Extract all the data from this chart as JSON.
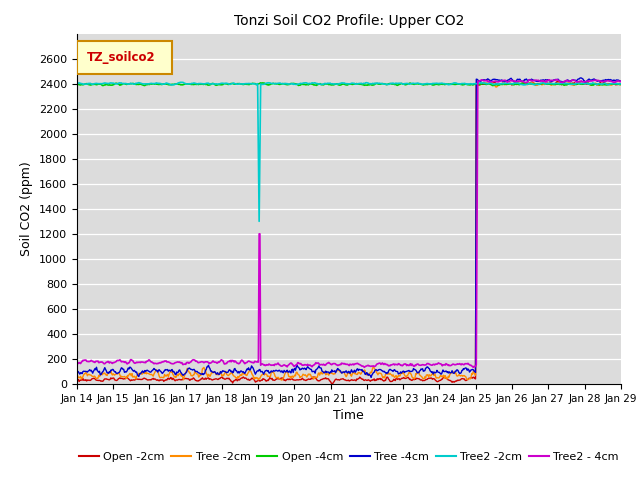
{
  "title": "Tonzi Soil CO2 Profile: Upper CO2",
  "xlabel": "Time",
  "ylabel": "Soil CO2 (ppm)",
  "ylim": [
    0,
    2800
  ],
  "yticks": [
    0,
    200,
    400,
    600,
    800,
    1000,
    1200,
    1400,
    1600,
    1800,
    2000,
    2200,
    2400,
    2600
  ],
  "xtick_labels": [
    "Jan 14",
    "Jan 15",
    "Jan 16",
    "Jan 17",
    "Jan 18",
    "Jan 19",
    "Jan 20",
    "Jan 21",
    "Jan 22",
    "Jan 23",
    "Jan 24",
    "Jan 25",
    "Jan 26",
    "Jan 27",
    "Jan 28",
    "Jan 29"
  ],
  "background_color": "#dcdcdc",
  "legend_label": "TZ_soilco2",
  "series": {
    "open_2cm": {
      "color": "#cc0000",
      "label": "Open -2cm",
      "lw": 1.0
    },
    "tree_2cm": {
      "color": "#ff8c00",
      "label": "Tree -2cm",
      "lw": 1.0
    },
    "open_4cm": {
      "color": "#00cc00",
      "label": "Open -4cm",
      "lw": 1.2
    },
    "tree_4cm": {
      "color": "#0000cc",
      "label": "Tree -4cm",
      "lw": 1.0
    },
    "tree2_2cm": {
      "color": "#00cccc",
      "label": "Tree2 -2cm",
      "lw": 1.2
    },
    "tree2_4cm": {
      "color": "#cc00cc",
      "label": "Tree2 - 4cm",
      "lw": 1.2
    }
  }
}
